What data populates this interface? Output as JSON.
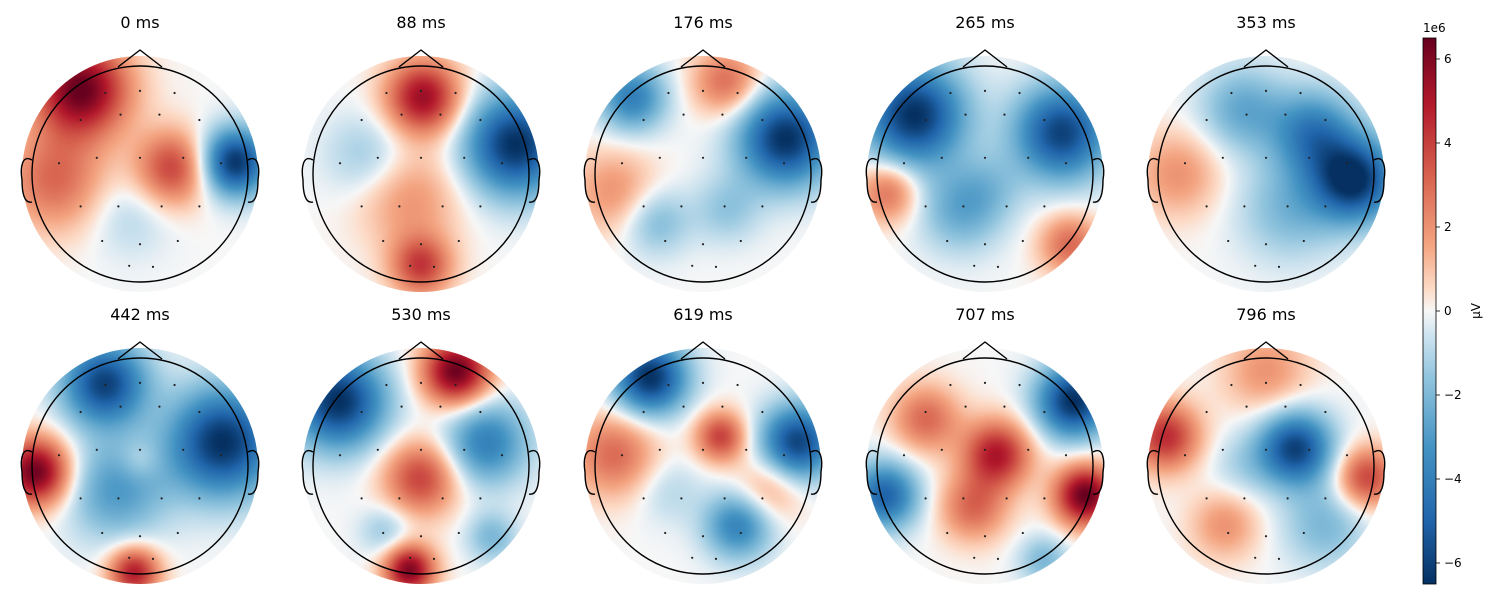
{
  "chart_data": {
    "type": "heatmap",
    "grid": false,
    "colormap": "RdBu_r",
    "colorbar": {
      "label": "µV",
      "offset_text": "1e6",
      "range": [
        -6.5,
        6.5
      ],
      "ticks": [
        6,
        4,
        2,
        0,
        -2,
        -4,
        -6
      ],
      "tick_labels": [
        "6",
        "4",
        "2",
        "0",
        "−2",
        "−4",
        "−6"
      ],
      "colors": {
        "min": "#053061",
        "mid": "#f7f7f7",
        "max": "#67001f"
      }
    },
    "topomaps": [
      {
        "title": "0 ms",
        "blobs": [
          [
            -0.5,
            -0.72,
            0.28,
            6.5
          ],
          [
            0.28,
            -0.05,
            0.22,
            4
          ],
          [
            -0.72,
            0.05,
            0.3,
            3
          ],
          [
            0.8,
            -0.1,
            0.2,
            -6.5
          ],
          [
            -0.1,
            0.35,
            0.25,
            -1
          ]
        ]
      },
      {
        "title": "88 ms",
        "blobs": [
          [
            0.8,
            -0.25,
            0.3,
            -6.5
          ],
          [
            0.02,
            -0.65,
            0.22,
            5.5
          ],
          [
            0.0,
            0.78,
            0.18,
            4
          ],
          [
            -0.1,
            0.2,
            0.3,
            2
          ],
          [
            -0.45,
            -0.15,
            0.25,
            -1.5
          ]
        ]
      },
      {
        "title": "176 ms",
        "blobs": [
          [
            0.7,
            -0.3,
            0.28,
            -6.5
          ],
          [
            -0.6,
            -0.65,
            0.2,
            -4
          ],
          [
            0.2,
            -0.78,
            0.2,
            3
          ],
          [
            -0.75,
            0.15,
            0.25,
            2
          ],
          [
            -0.4,
            0.4,
            0.2,
            -2
          ],
          [
            0.2,
            0.3,
            0.2,
            -1.5
          ]
        ]
      },
      {
        "title": "265 ms",
        "blobs": [
          [
            -0.6,
            -0.5,
            0.3,
            -6.5
          ],
          [
            0.65,
            -0.35,
            0.28,
            -6
          ],
          [
            -0.82,
            0.15,
            0.18,
            3
          ],
          [
            0.72,
            0.6,
            0.18,
            3
          ],
          [
            -0.2,
            0.3,
            0.25,
            -2.5
          ],
          [
            0.05,
            0.1,
            0.2,
            -1
          ]
        ]
      },
      {
        "title": "353 ms",
        "blobs": [
          [
            0.75,
            0.05,
            0.25,
            -6.5
          ],
          [
            0.4,
            -0.35,
            0.25,
            -4
          ],
          [
            -0.2,
            -0.55,
            0.25,
            -2.5
          ],
          [
            -0.75,
            0.0,
            0.25,
            2
          ],
          [
            0.2,
            0.3,
            0.3,
            -2
          ]
        ]
      },
      {
        "title": "442 ms",
        "blobs": [
          [
            -0.88,
            0.05,
            0.2,
            6.5
          ],
          [
            0.7,
            -0.2,
            0.32,
            -6.5
          ],
          [
            -0.3,
            -0.7,
            0.25,
            -6
          ],
          [
            0.0,
            -0.05,
            0.12,
            1
          ],
          [
            -0.05,
            0.9,
            0.15,
            5
          ],
          [
            -0.2,
            0.2,
            0.3,
            -3
          ]
        ]
      },
      {
        "title": "530 ms",
        "blobs": [
          [
            -0.7,
            -0.55,
            0.28,
            -6.5
          ],
          [
            0.3,
            -0.8,
            0.2,
            6.5
          ],
          [
            0.0,
            0.1,
            0.22,
            4
          ],
          [
            -0.1,
            0.88,
            0.15,
            6
          ],
          [
            0.55,
            -0.2,
            0.25,
            -4
          ],
          [
            -0.3,
            0.55,
            0.15,
            -1.5
          ],
          [
            0.6,
            0.6,
            0.15,
            -2
          ]
        ]
      },
      {
        "title": "619 ms",
        "blobs": [
          [
            -0.45,
            -0.75,
            0.22,
            -6.5
          ],
          [
            0.8,
            -0.2,
            0.22,
            -6
          ],
          [
            0.3,
            0.5,
            0.2,
            -4
          ],
          [
            -0.75,
            -0.1,
            0.25,
            3
          ],
          [
            0.15,
            -0.25,
            0.15,
            4
          ],
          [
            -0.3,
            0.2,
            0.2,
            -1
          ],
          [
            0.55,
            0.2,
            0.2,
            2
          ]
        ]
      },
      {
        "title": "707 ms",
        "blobs": [
          [
            0.85,
            0.25,
            0.18,
            6.5
          ],
          [
            0.75,
            -0.55,
            0.22,
            -6.5
          ],
          [
            -0.85,
            0.25,
            0.2,
            -5
          ],
          [
            0.1,
            -0.1,
            0.2,
            5
          ],
          [
            -0.1,
            0.35,
            0.2,
            3
          ],
          [
            -0.5,
            -0.4,
            0.2,
            3
          ],
          [
            0.5,
            0.8,
            0.15,
            -2
          ]
        ]
      },
      {
        "title": "796 ms",
        "blobs": [
          [
            0.25,
            -0.15,
            0.22,
            -6
          ],
          [
            -0.85,
            -0.25,
            0.2,
            4.5
          ],
          [
            0.85,
            0.1,
            0.18,
            4
          ],
          [
            -0.35,
            0.5,
            0.2,
            2
          ],
          [
            0.0,
            -0.8,
            0.25,
            2
          ],
          [
            0.5,
            0.5,
            0.25,
            -2
          ],
          [
            -0.2,
            0.0,
            0.2,
            -1
          ]
        ]
      }
    ]
  }
}
